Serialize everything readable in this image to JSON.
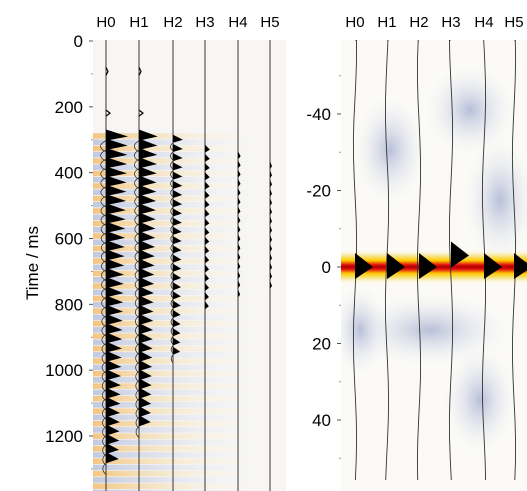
{
  "chart_data": [
    {
      "type": "heatmap",
      "description_role": "left panel: seismic-style traces with shaded background",
      "xlabel": "",
      "ylabel": "Time / ms",
      "x_categories": [
        "H0",
        "H1",
        "H2",
        "H3",
        "H4",
        "H5"
      ],
      "y_ticks": [
        0,
        200,
        400,
        600,
        800,
        1000,
        1200
      ],
      "ylim": [
        0,
        1350
      ],
      "y_direction": "down",
      "grid": false,
      "traces": [
        {
          "name": "H0",
          "first_arrival_ms": 80,
          "wavelet_count": 36,
          "amplitude": 1.0
        },
        {
          "name": "H1",
          "first_arrival_ms": 80,
          "wavelet_count": 32,
          "amplitude": 0.85
        },
        {
          "name": "H2",
          "first_arrival_ms": 300,
          "wavelet_count": 24,
          "amplitude": 0.45
        },
        {
          "name": "H3",
          "first_arrival_ms": 330,
          "wavelet_count": 18,
          "amplitude": 0.22
        },
        {
          "name": "H4",
          "first_arrival_ms": 350,
          "wavelet_count": 16,
          "amplitude": 0.12
        },
        {
          "name": "H5",
          "first_arrival_ms": 380,
          "wavelet_count": 14,
          "amplitude": 0.06
        }
      ],
      "colors": {
        "trace": "#000000",
        "background_warm": "#f4c27a",
        "background_cool": "#c9cfe3"
      }
    },
    {
      "type": "heatmap",
      "description_role": "right panel: correlation traces with heatmap background",
      "xlabel": "",
      "ylabel": "",
      "x_categories": [
        "H0",
        "H1",
        "H2",
        "H3",
        "H4",
        "H5"
      ],
      "y_ticks": [
        -40,
        -20,
        0,
        20,
        40
      ],
      "ylim": [
        -60,
        60
      ],
      "y_direction": "down",
      "grid": false,
      "traces": [
        {
          "name": "H0",
          "peak_lag": 0
        },
        {
          "name": "H1",
          "peak_lag": 0
        },
        {
          "name": "H2",
          "peak_lag": 0
        },
        {
          "name": "H3",
          "peak_lag": -1
        },
        {
          "name": "H4",
          "peak_lag": 0
        },
        {
          "name": "H5",
          "peak_lag": 0
        }
      ],
      "colors": {
        "hot_core": "#1a0000",
        "hot_mid": "#e01010",
        "hot_edge": "#ffcc00",
        "cool": "#b9c2dc",
        "trace": "#000000"
      }
    }
  ]
}
